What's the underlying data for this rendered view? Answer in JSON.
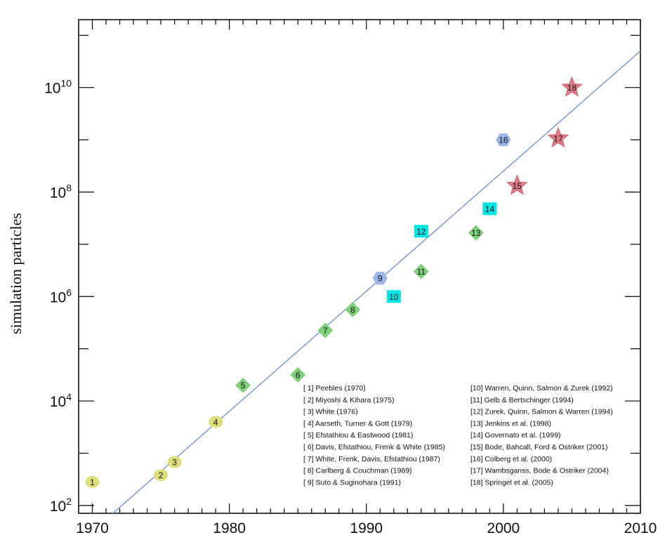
{
  "chart_data": {
    "type": "scatter",
    "xlabel": "",
    "ylabel": "simulation particles",
    "xlim": [
      1969,
      2010
    ],
    "ylim_log10": [
      1.85,
      11.3
    ],
    "y_scale": "log",
    "x_ticks": [
      1970,
      1980,
      1990,
      2000,
      2010
    ],
    "y_ticks": [
      {
        "value": 2,
        "base": "10",
        "exp": "2"
      },
      {
        "value": 4,
        "base": "10",
        "exp": "4"
      },
      {
        "value": 6,
        "base": "10",
        "exp": "6"
      },
      {
        "value": 8,
        "base": "10",
        "exp": "8"
      },
      {
        "value": 10,
        "base": "10",
        "exp": "10"
      }
    ],
    "trend_line": {
      "from": [
        1971.5,
        1.85
      ],
      "to": [
        2010,
        10.7
      ],
      "color": "#6b8fd6"
    },
    "points": [
      {
        "id": "1",
        "x": 1970,
        "log10y": 2.45,
        "shape": "circle",
        "color": "#dede7a"
      },
      {
        "id": "2",
        "x": 1975,
        "log10y": 2.58,
        "shape": "circle",
        "color": "#dede7a"
      },
      {
        "id": "3",
        "x": 1976,
        "log10y": 2.83,
        "shape": "circle",
        "color": "#dede7a"
      },
      {
        "id": "4",
        "x": 1979,
        "log10y": 3.6,
        "shape": "circle",
        "color": "#dede7a"
      },
      {
        "id": "5",
        "x": 1981,
        "log10y": 4.3,
        "shape": "diamond",
        "color": "#7ed07a"
      },
      {
        "id": "6",
        "x": 1985,
        "log10y": 4.5,
        "shape": "diamond",
        "color": "#7ed07a"
      },
      {
        "id": "7",
        "x": 1987,
        "log10y": 5.35,
        "shape": "diamond",
        "color": "#7ed07a"
      },
      {
        "id": "8",
        "x": 1989,
        "log10y": 5.75,
        "shape": "diamond",
        "color": "#7ed07a"
      },
      {
        "id": "9",
        "x": 1991,
        "log10y": 6.35,
        "shape": "hexagon",
        "color": "#9bb5e8"
      },
      {
        "id": "10",
        "x": 1992,
        "log10y": 6.0,
        "shape": "square",
        "color": "#00e5e5"
      },
      {
        "id": "11",
        "x": 1994,
        "log10y": 6.48,
        "shape": "diamond",
        "color": "#7ed07a"
      },
      {
        "id": "12",
        "x": 1994,
        "log10y": 7.25,
        "shape": "square",
        "color": "#00e5e5"
      },
      {
        "id": "13",
        "x": 1998,
        "log10y": 7.22,
        "shape": "diamond",
        "color": "#7ed07a"
      },
      {
        "id": "14",
        "x": 1999,
        "log10y": 7.68,
        "shape": "square",
        "color": "#00e5e5"
      },
      {
        "id": "15",
        "x": 2001,
        "log10y": 8.12,
        "shape": "star",
        "color": "#e07a85"
      },
      {
        "id": "16",
        "x": 2000,
        "log10y": 9.0,
        "shape": "hexagon",
        "color": "#9bb5e8"
      },
      {
        "id": "17",
        "x": 2004,
        "log10y": 9.03,
        "shape": "star",
        "color": "#e07a85"
      },
      {
        "id": "18",
        "x": 2005,
        "log10y": 10.0,
        "shape": "star",
        "color": "#e07a85"
      }
    ],
    "legend": {
      "placement": "bottom-right",
      "left_column": [
        "[ 1] Peebles (1970)",
        "[ 2] Miyoshi & Kihara (1975)",
        "[ 3] White (1976)",
        "[ 4] Aarseth, Turner & Gott (1979)",
        "[ 5] Efstathiou & Eastwood (1981)",
        "[ 6] Davis, Efstathiou, Frenk & White (1985)",
        "[ 7] White, Frenk, Davis, Efstathiou (1987)",
        "[ 8] Carlberg & Couchman (1989)",
        "[ 9] Suto & Suginohara (1991)"
      ],
      "right_column": [
        "[10] Warren, Quinn, Salmon & Zurek (1992)",
        "[11] Gelb & Bertschinger (1994)",
        "[12] Zurek, Quinn, Salmon & Warren (1994)",
        "[13] Jenkins et al. (1998)",
        "[14] Governato et al. (1999)",
        "[15] Bode, Bahcall, Ford & Ostriker (2001)",
        "[16] Colberg et al. (2000)",
        "[17] Wambsganss, Bode & Ostriker (2004)",
        "[18] Springel et al. (2005)"
      ]
    }
  }
}
